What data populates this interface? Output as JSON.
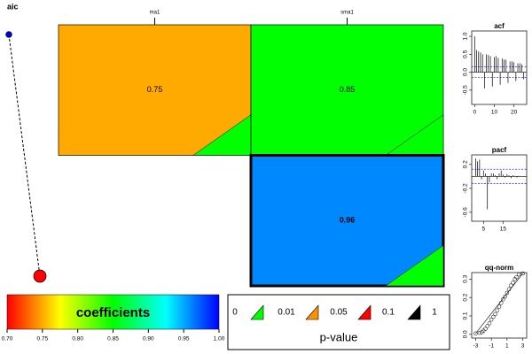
{
  "chart_data": [
    {
      "type": "aic",
      "title": "aic"
    },
    {
      "type": "heatmap",
      "columns": [
        "ma1",
        "sma1"
      ],
      "values": [
        [
          0.75,
          0.85
        ],
        [
          null,
          0.96
        ]
      ],
      "selected": [
        1,
        1
      ],
      "triangle_color": "#00ff00",
      "colorbar": {
        "title": "coefficients",
        "lim": [
          0.7,
          1.0
        ],
        "ticks": [
          {
            "value": 0.7,
            "label": "0.70"
          },
          0.75,
          {
            "value": 0.8,
            "label": "0.80"
          },
          0.85,
          {
            "value": 0.9,
            "label": "0.90"
          },
          0.95,
          {
            "value": 1.0,
            "label": "1.00"
          }
        ]
      },
      "pvalue_legend": {
        "title": "p-value",
        "breaks": [
          0,
          0.01,
          0.05,
          0.1,
          1
        ],
        "colors": [
          "#00ff00",
          "#ff9000",
          "#ff0000",
          "#000000"
        ]
      }
    },
    {
      "type": "acf",
      "title": "acf",
      "x": [
        0,
        1,
        2,
        3,
        4,
        5,
        6,
        7,
        8,
        9,
        10,
        11,
        12,
        13,
        14,
        15,
        16,
        17,
        18,
        19,
        20,
        21,
        22,
        23,
        24,
        25
      ],
      "values": [
        1,
        0.62,
        0.58,
        0.55,
        0.5,
        -0.45,
        0.5,
        0.48,
        0.45,
        -0.4,
        0.42,
        0.45,
        0.4,
        -0.35,
        0.38,
        0.35,
        0.35,
        -0.3,
        0.3,
        0.3,
        0.28,
        -0.25,
        0.25,
        0.25,
        0.22,
        -0.2
      ],
      "conf_band": [
        -0.15,
        0.15
      ],
      "xlim": [
        -1.5,
        26.5
      ],
      "xticks": [
        0,
        10,
        20
      ],
      "ylim": [
        -0.9,
        1.15
      ],
      "yticks": [
        -0.5,
        {
          "value": 0,
          "label": "0.0"
        },
        0.5,
        {
          "value": 1,
          "label": "1.0"
        }
      ]
    },
    {
      "type": "acf",
      "title": "pacf",
      "x": [
        1,
        2,
        3,
        4,
        5,
        6,
        7,
        8,
        9,
        10,
        11,
        12,
        13,
        14,
        15,
        16,
        17,
        18,
        19,
        20,
        21,
        22,
        23,
        24
      ],
      "values": [
        0.3,
        0.25,
        0.28,
        -0.05,
        0.1,
        0.05,
        -0.55,
        -0.1,
        0.05,
        0.05,
        0.02,
        -0.05,
        0.05,
        0.1,
        0.03,
        -0.02,
        0.04,
        0.02,
        -0.03,
        0.02,
        0.01,
        -0.02,
        0.01,
        0.0
      ],
      "conf_band": [
        -0.12,
        0.12
      ],
      "xlim": [
        -1,
        27
      ],
      "xticks": [
        5,
        15
      ],
      "ylim": [
        -0.75,
        0.36
      ],
      "yticks": [
        -0.6,
        -0.2,
        0.2
      ]
    },
    {
      "type": "scatter",
      "title": "qq-norm",
      "x": [
        -3,
        -2.5,
        -2.2,
        -2,
        -1.75,
        -1.5,
        -1.25,
        -1,
        -0.75,
        -0.5,
        -0.25,
        0,
        0.25,
        0.5,
        0.75,
        1,
        1.25,
        1.5,
        1.75,
        2,
        2.2,
        2.5,
        3
      ],
      "y": [
        0.005,
        0.008,
        0.012,
        0.02,
        0.03,
        0.045,
        0.06,
        0.08,
        0.095,
        0.11,
        0.13,
        0.15,
        0.17,
        0.19,
        0.205,
        0.225,
        0.245,
        0.265,
        0.28,
        0.3,
        0.31,
        0.325,
        0.33
      ],
      "xlim": [
        -3.5,
        3.5
      ],
      "xticks": [
        -3,
        -1,
        1,
        3
      ],
      "ylim": [
        -0.02,
        0.335
      ],
      "yticks": [
        {
          "value": 0,
          "label": "0.0"
        },
        0.1,
        0.2,
        0.3
      ]
    }
  ]
}
